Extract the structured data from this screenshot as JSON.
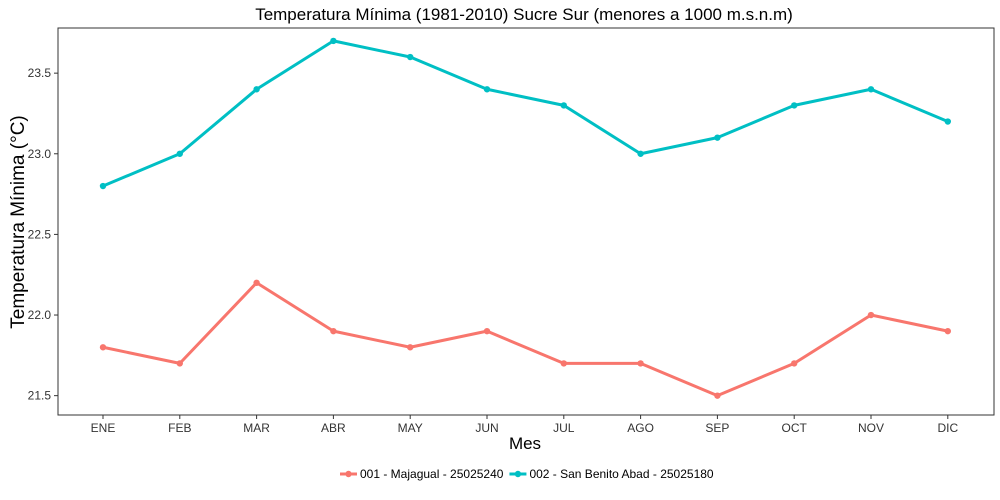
{
  "chart_data": {
    "type": "line",
    "title": "Temperatura Mínima (1981-2010) Sucre Sur (menores a 1000 m.s.n.m)",
    "xlabel": "Mes",
    "ylabel": "Temperatura Mínima (°C)",
    "categories": [
      "ENE",
      "FEB",
      "MAR",
      "ABR",
      "MAY",
      "JUN",
      "JUL",
      "AGO",
      "SEP",
      "OCT",
      "NOV",
      "DIC"
    ],
    "ylim": [
      21.38,
      23.78
    ],
    "yticks": [
      21.5,
      22.0,
      22.5,
      23.0,
      23.5
    ],
    "ytick_labels": [
      "21.5",
      "22.0",
      "22.5",
      "23.0",
      "23.5"
    ],
    "grid": false,
    "legend_position": "bottom",
    "series": [
      {
        "name": "001 - Majagual - 25025240",
        "color": "#F8766D",
        "values": [
          21.8,
          21.7,
          22.2,
          21.9,
          21.8,
          21.9,
          21.7,
          21.7,
          21.5,
          21.7,
          22.0,
          21.9
        ]
      },
      {
        "name": "002 - San Benito Abad - 25025180",
        "color": "#00BFC4",
        "values": [
          22.8,
          23.0,
          23.4,
          23.7,
          23.6,
          23.4,
          23.3,
          23.0,
          23.1,
          23.3,
          23.4,
          23.2
        ]
      }
    ]
  }
}
